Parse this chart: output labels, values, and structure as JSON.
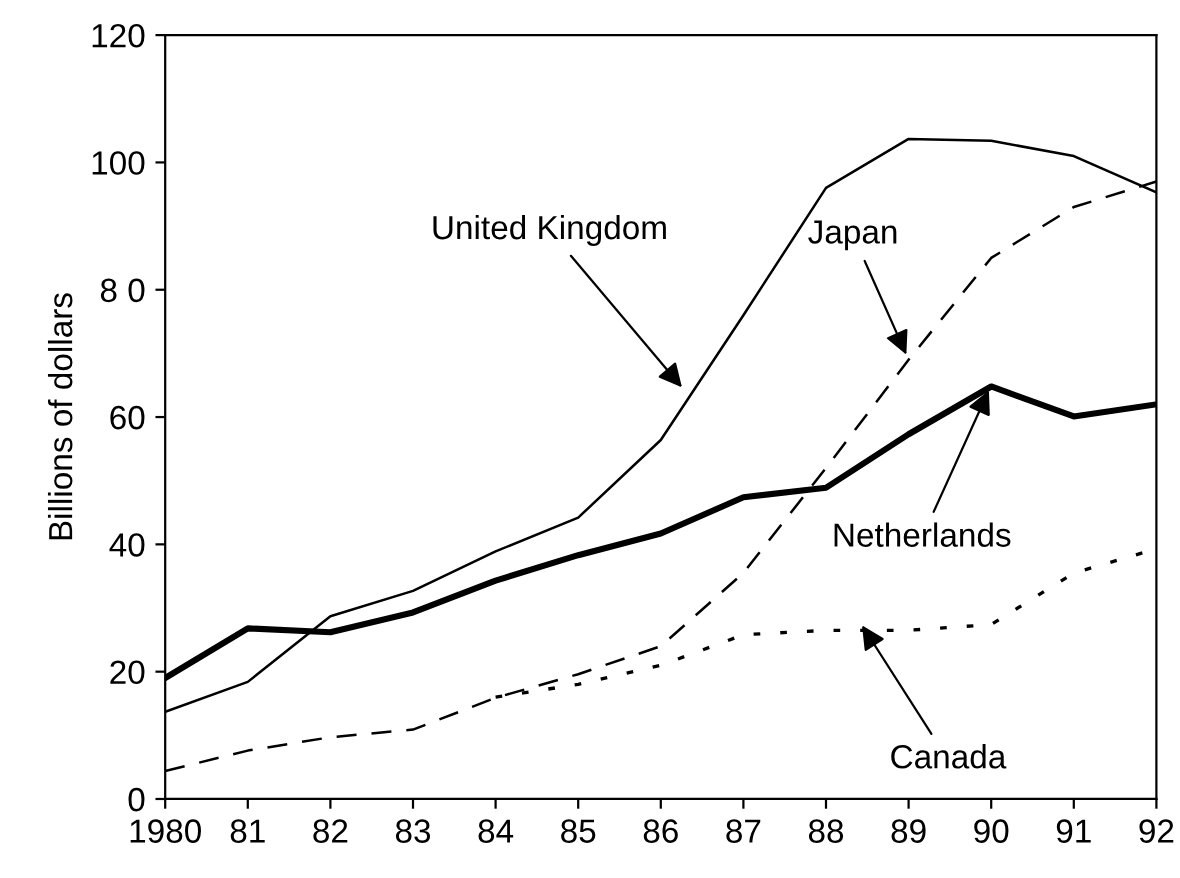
{
  "chart_data": {
    "type": "line",
    "ylabel": "Billions of dollars",
    "x": [
      1980,
      1981,
      1982,
      1983,
      1984,
      1985,
      1986,
      1987,
      1988,
      1989,
      1990,
      1991,
      1992
    ],
    "series": [
      {
        "color": "#000000",
        "line_style": "solid",
        "values": [
          13.7,
          18.4,
          28.7,
          32.7,
          38.9,
          44.2,
          56.4,
          76,
          96,
          103.7,
          103.4,
          101,
          95.3
        ]
      },
      {
        "color": "#000000",
        "line_style": "dashed",
        "values": [
          4.4,
          7.6,
          9.7,
          10.9,
          15.9,
          19.6,
          24,
          35.5,
          52,
          69,
          85,
          93,
          97
        ]
      },
      {
        "color": "#000000",
        "line_style": "solid",
        "values": [
          19,
          26.8,
          26.2,
          29.3,
          34.3,
          38.3,
          41.7,
          47.4,
          48.9,
          57.3,
          64.8,
          60.1,
          62
        ]
      },
      {
        "color": "#000000",
        "line_style": "dotted",
        "values": [
          null,
          null,
          null,
          null,
          16,
          18,
          21,
          25.8,
          26.5,
          26.5,
          27.4,
          35.5,
          39.3
        ]
      }
    ],
    "annotations": [
      {
        "text": "United Kingdom",
        "x": 1986.3,
        "y": 64
      },
      {
        "text": "Japan",
        "x": 1989,
        "y": 69
      },
      {
        "text": "Netherlands",
        "x": 1990,
        "y": 65
      },
      {
        "text": "Canada",
        "x": 1988.4,
        "y": 28
      }
    ],
    "xlim": [
      1980,
      1992
    ],
    "ylim": [
      0,
      120
    ],
    "xticks": [
      {
        "value": 1980,
        "label": "1980"
      },
      {
        "value": 1981,
        "label": "81"
      },
      {
        "value": 1982,
        "label": "82"
      },
      {
        "value": 1983,
        "label": "83"
      },
      {
        "value": 1984,
        "label": "84"
      },
      {
        "value": 1985,
        "label": "85"
      },
      {
        "value": 1986,
        "label": "86"
      },
      {
        "value": 1987,
        "label": "87"
      },
      {
        "value": 1988,
        "label": "88"
      },
      {
        "value": 1989,
        "label": "89"
      },
      {
        "value": 1990,
        "label": "90"
      },
      {
        "value": 1991,
        "label": "91"
      },
      {
        "value": 1992,
        "label": "92"
      }
    ],
    "yticks": [
      0,
      20,
      40,
      60,
      {
        "value": 80,
        "label": "8 0"
      },
      100,
      120
    ],
    "grid": false,
    "legend": false,
    "marker": "none"
  }
}
